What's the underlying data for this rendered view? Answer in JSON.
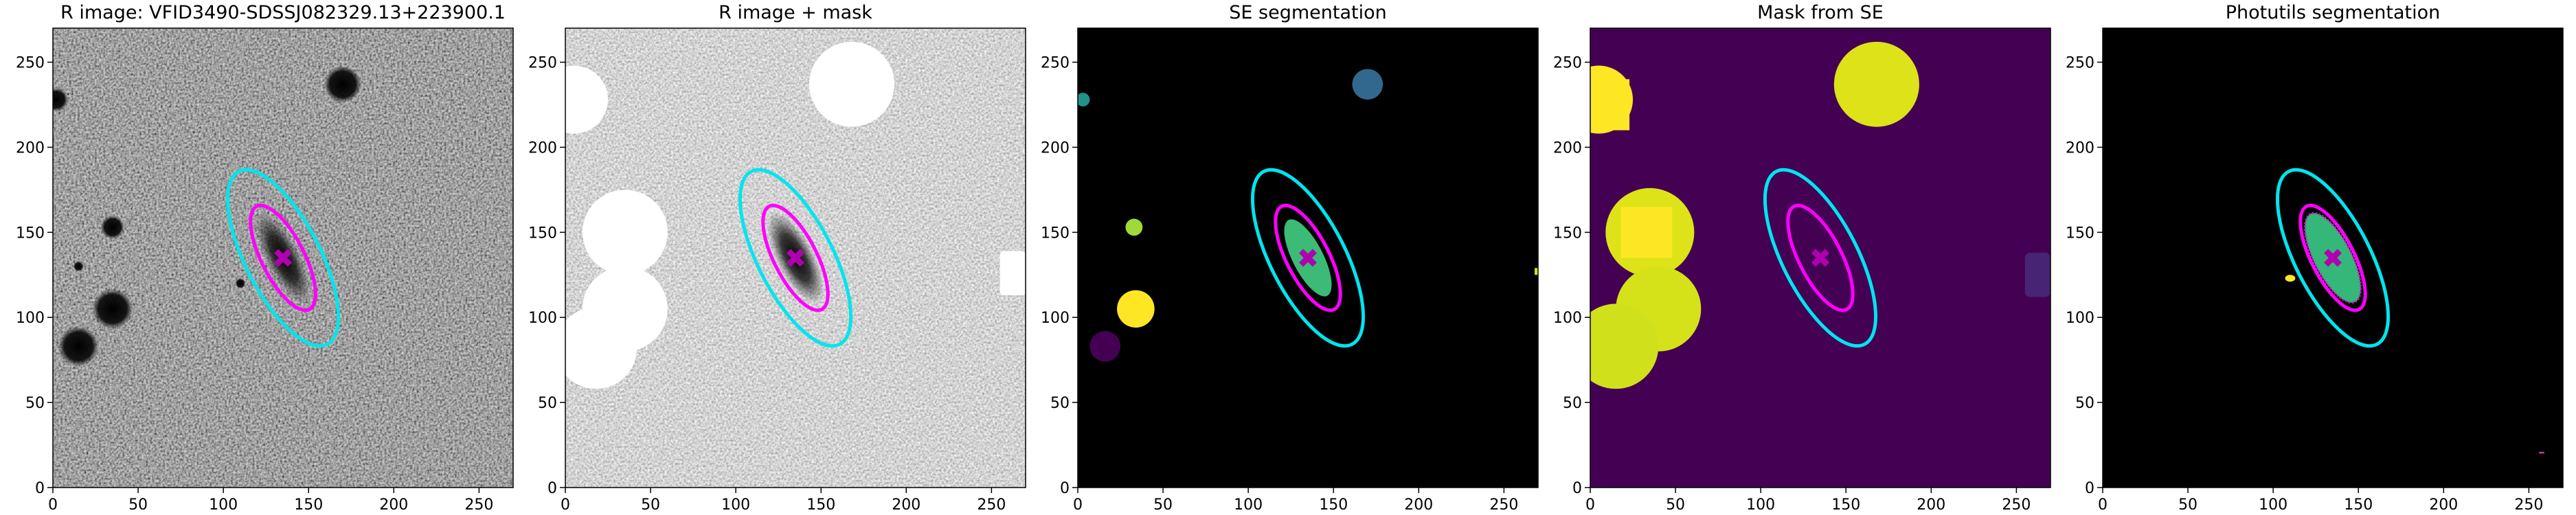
{
  "chart_data": [
    {
      "type": "image",
      "title": "R image: VFID3490-SDSSJ082329.13+223900.1",
      "xlim": [
        0,
        270
      ],
      "ylim": [
        0,
        270
      ],
      "xticks": [
        0,
        50,
        100,
        150,
        200,
        250
      ],
      "yticks": [
        0,
        50,
        100,
        150,
        200,
        250
      ]
    },
    {
      "type": "image",
      "title": "R image + mask",
      "xlim": [
        0,
        270
      ],
      "ylim": [
        0,
        270
      ],
      "xticks": [
        0,
        50,
        100,
        150,
        200,
        250
      ],
      "yticks": [
        0,
        50,
        100,
        150,
        200,
        250
      ]
    },
    {
      "type": "image",
      "title": "SE segmentation",
      "xlim": [
        0,
        270
      ],
      "ylim": [
        0,
        270
      ],
      "xticks": [
        0,
        50,
        100,
        150,
        200,
        250
      ],
      "yticks": [
        0,
        50,
        100,
        150,
        200,
        250
      ]
    },
    {
      "type": "image",
      "title": "Mask from SE",
      "xlim": [
        0,
        270
      ],
      "ylim": [
        0,
        270
      ],
      "xticks": [
        0,
        50,
        100,
        150,
        200,
        250
      ],
      "yticks": [
        0,
        50,
        100,
        150,
        200,
        250
      ]
    },
    {
      "type": "image",
      "title": "Photutils segmentation",
      "xlim": [
        0,
        270
      ],
      "ylim": [
        0,
        270
      ],
      "xticks": [
        0,
        50,
        100,
        150,
        200,
        250
      ],
      "yticks": [
        0,
        50,
        100,
        150,
        200,
        250
      ]
    }
  ]
}
